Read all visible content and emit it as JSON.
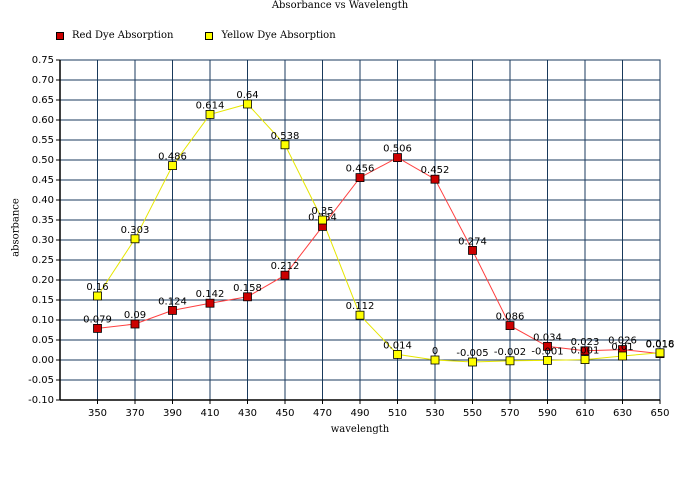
{
  "chart_data": {
    "type": "line",
    "title": "Absorbance vs Wavelength",
    "xlabel": "wavelength",
    "ylabel": "absorbance",
    "x": [
      350,
      370,
      390,
      410,
      430,
      450,
      470,
      490,
      510,
      530,
      550,
      570,
      590,
      610,
      630,
      650
    ],
    "xlim": [
      330,
      650
    ],
    "ylim": [
      -0.1,
      0.75
    ],
    "ytick_step": 0.05,
    "grid": true,
    "legend_position": "top-left",
    "series": [
      {
        "name": "Red Dye Absorption",
        "color": "#cc0000",
        "line_color": "#ff4040",
        "values": [
          0.079,
          0.09,
          0.124,
          0.142,
          0.158,
          0.212,
          0.334,
          0.456,
          0.506,
          0.452,
          0.274,
          0.086,
          0.034,
          0.023,
          0.026,
          0.016
        ],
        "labels": [
          "0.079",
          "0.09",
          "0.124",
          "0.142",
          "0.158",
          "0.212",
          "0.334",
          "0.456",
          "0.506",
          "0.452",
          "0.274",
          "0.086",
          "0.034",
          "0.023",
          "0.026",
          "0.016"
        ]
      },
      {
        "name": "Yellow Dye Absorption",
        "color": "#ffff00",
        "line_color": "#e6e600",
        "values": [
          0.16,
          0.303,
          0.486,
          0.614,
          0.64,
          0.538,
          0.35,
          0.112,
          0.014,
          0,
          -0.005,
          -0.002,
          -0.001,
          0.001,
          0.01,
          0.018
        ],
        "labels": [
          "0.16",
          "0.303",
          "0.486",
          "0.614",
          "0.64",
          "0.538",
          "0.35",
          "0.112",
          "0.014",
          "0",
          "-0.005",
          "-0.002",
          "-0.001",
          "0.001",
          "0.01",
          "0.018"
        ]
      }
    ]
  }
}
